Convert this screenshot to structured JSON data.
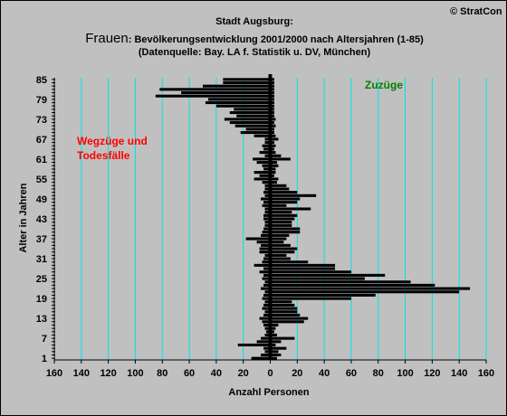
{
  "header": {
    "copyright": "© StratCon",
    "title": "Stadt Augsburg:",
    "subject": "Frauen",
    "subtitle_rest": ": Bevölkerungsentwicklung 2001/2000 nach Altersjahren (1-85)",
    "source": "(Datenquelle: Bay. LA f. Statistik u. DV, München)"
  },
  "annotations": {
    "left_line1": "Wegzüge und",
    "left_line2": "Todesfälle",
    "right": "Zuzüge"
  },
  "colors": {
    "background": "#c0c0c0",
    "plot_background": "#c0c0c0",
    "bars": "#000000",
    "grid": "#00e5e5",
    "left_annotation": "#ff0000",
    "right_annotation": "#008000"
  },
  "chart_data": {
    "type": "bar",
    "orientation": "horizontal",
    "grid": true,
    "xlabel": "Anzahl Personen",
    "ylabel": "Alter in Jahren",
    "xlim": [
      -160,
      160
    ],
    "ylim": [
      1,
      85
    ],
    "x_ticks": [
      -160,
      -140,
      -120,
      -100,
      -80,
      -60,
      -40,
      -20,
      0,
      20,
      40,
      60,
      80,
      100,
      120,
      140,
      160
    ],
    "x_tick_labels": [
      "160",
      "140",
      "120",
      "100",
      "80",
      "60",
      "40",
      "20",
      "0",
      "20",
      "40",
      "60",
      "80",
      "100",
      "120",
      "140",
      "160"
    ],
    "y_ticks": [
      1,
      7,
      13,
      19,
      25,
      31,
      37,
      43,
      49,
      55,
      61,
      67,
      73,
      79,
      85
    ],
    "ages": [
      1,
      2,
      3,
      4,
      5,
      6,
      7,
      8,
      9,
      10,
      11,
      12,
      13,
      14,
      15,
      16,
      17,
      18,
      19,
      20,
      21,
      22,
      23,
      24,
      25,
      26,
      27,
      28,
      29,
      30,
      31,
      32,
      33,
      34,
      35,
      36,
      37,
      38,
      39,
      40,
      41,
      42,
      43,
      44,
      45,
      46,
      47,
      48,
      49,
      50,
      51,
      52,
      53,
      54,
      55,
      56,
      57,
      58,
      59,
      60,
      61,
      62,
      63,
      64,
      65,
      66,
      67,
      68,
      69,
      70,
      71,
      72,
      73,
      74,
      75,
      76,
      77,
      78,
      79,
      80,
      81,
      82,
      83,
      84,
      85
    ],
    "series": [
      {
        "name": "Zuzüge",
        "values": [
          5,
          8,
          6,
          12,
          4,
          8,
          18,
          5,
          3,
          4,
          6,
          25,
          28,
          22,
          20,
          20,
          18,
          16,
          60,
          78,
          140,
          148,
          122,
          104,
          70,
          85,
          60,
          48,
          48,
          28,
          15,
          12,
          18,
          20,
          15,
          10,
          12,
          14,
          22,
          22,
          16,
          16,
          18,
          20,
          16,
          30,
          12,
          20,
          22,
          34,
          20,
          14,
          12,
          5,
          6,
          3,
          4,
          4,
          6,
          5,
          15,
          8,
          4,
          3,
          4,
          3,
          6,
          4,
          3,
          3,
          4,
          3,
          4,
          3,
          3,
          3,
          3,
          3,
          3,
          3,
          3,
          3,
          3,
          3,
          3
        ]
      },
      {
        "name": "Wegzüge und Todesfälle",
        "values": [
          -14,
          -7,
          -4,
          -5,
          -24,
          -10,
          -7,
          -4,
          -3,
          -4,
          -5,
          -6,
          -8,
          -5,
          -4,
          -6,
          -5,
          -4,
          -6,
          -5,
          -4,
          -7,
          -5,
          -4,
          -6,
          -5,
          -8,
          -5,
          -12,
          -6,
          -5,
          -4,
          -8,
          -8,
          -7,
          -10,
          -18,
          -7,
          -6,
          -5,
          -4,
          -4,
          -5,
          -5,
          -4,
          -4,
          -6,
          -5,
          -7,
          -4,
          -5,
          -4,
          -4,
          -6,
          -12,
          -8,
          -12,
          -5,
          -6,
          -10,
          -13,
          -4,
          -8,
          -5,
          -6,
          -4,
          -4,
          -12,
          -22,
          -18,
          -26,
          -30,
          -34,
          -25,
          -30,
          -27,
          -40,
          -48,
          -46,
          -85,
          -66,
          -82,
          -50,
          -35,
          -35
        ]
      }
    ]
  }
}
